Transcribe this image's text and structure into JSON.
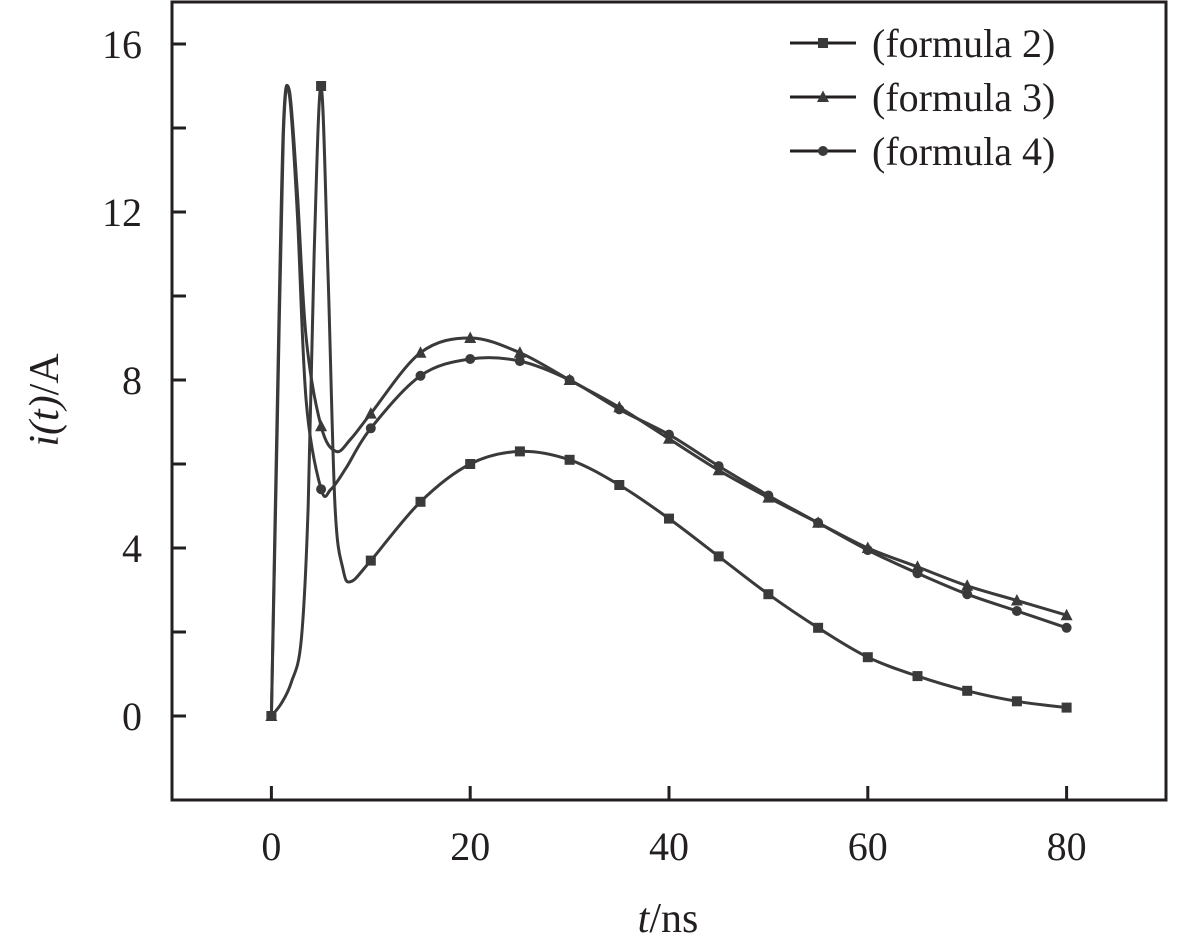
{
  "chart_data": {
    "type": "line",
    "title": "",
    "xlabel": {
      "var": "t",
      "unit": "/ns"
    },
    "ylabel": {
      "var1": "i(",
      "var2": "t",
      "var3": ")",
      "unit": "/A"
    },
    "xlim": [
      -10,
      90
    ],
    "ylim": [
      -2,
      17
    ],
    "xticks": [
      0,
      20,
      40,
      60,
      80
    ],
    "xtick_labels": [
      "0",
      "20",
      "40",
      "60",
      "80"
    ],
    "yticks": [
      0,
      4,
      8,
      12,
      16
    ],
    "ytick_labels": [
      "0",
      "4",
      "8",
      "12",
      "16"
    ],
    "yminor_ticks": [
      2,
      6,
      10,
      14
    ],
    "grid": false,
    "legend_position": "top-right",
    "series": [
      {
        "name": "(formula 2)",
        "marker": "square",
        "x": [
          0,
          1,
          2,
          3,
          3.7,
          4.3,
          5,
          5.7,
          6.4,
          7.2,
          8,
          10,
          15,
          20,
          25,
          30,
          35,
          40,
          45,
          50,
          55,
          60,
          65,
          70,
          75,
          80
        ],
        "y": [
          0,
          0.3,
          0.8,
          1.8,
          5,
          11,
          15,
          10.5,
          5,
          3.5,
          3.2,
          3.7,
          5.1,
          6.0,
          6.3,
          6.1,
          5.5,
          4.7,
          3.8,
          2.9,
          2.1,
          1.4,
          0.95,
          0.6,
          0.35,
          0.2
        ]
      },
      {
        "name": "(formula 3)",
        "marker": "triangle",
        "x": [
          0,
          0.6,
          1.2,
          1.8,
          2.6,
          3.5,
          5,
          6.5,
          8,
          10,
          15,
          20,
          25,
          30,
          35,
          40,
          45,
          50,
          55,
          60,
          65,
          70,
          75,
          80
        ],
        "y": [
          0,
          7,
          13.8,
          14.9,
          12.5,
          9,
          6.9,
          6.3,
          6.6,
          7.2,
          8.65,
          9.0,
          8.65,
          8.0,
          7.35,
          6.6,
          5.85,
          5.2,
          4.6,
          4.0,
          3.55,
          3.1,
          2.75,
          2.4
        ]
      },
      {
        "name": "(formula 4)",
        "marker": "circle",
        "x": [
          0,
          0.6,
          1.2,
          1.8,
          2.6,
          3.5,
          5,
          6,
          7.5,
          10,
          15,
          20,
          25,
          30,
          35,
          40,
          45,
          50,
          55,
          60,
          65,
          70,
          75,
          80
        ],
        "y": [
          0,
          7.5,
          14,
          14.8,
          12,
          7.5,
          5.4,
          5.4,
          5.9,
          6.85,
          8.1,
          8.5,
          8.45,
          8.0,
          7.3,
          6.7,
          5.95,
          5.25,
          4.6,
          3.95,
          3.4,
          2.9,
          2.5,
          2.1
        ]
      }
    ]
  },
  "colors": {
    "line": "#3a3a3a",
    "axis": "#231f20"
  }
}
